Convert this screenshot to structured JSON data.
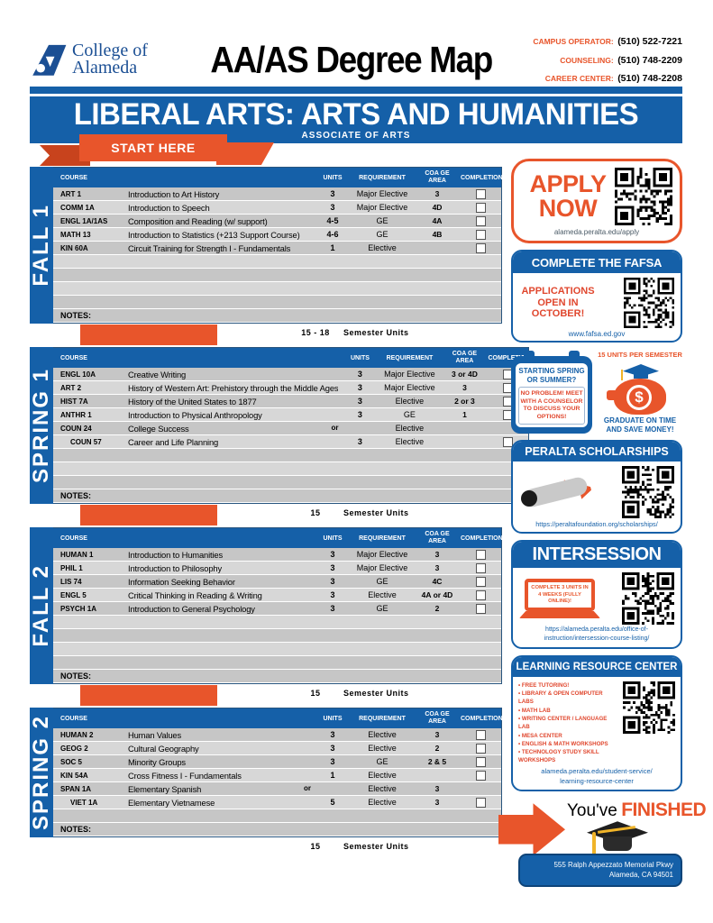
{
  "header": {
    "logo_line1": "College of",
    "logo_line2": "Alameda",
    "title": "AA/AS Degree Map",
    "contacts": [
      {
        "label": "CAMPUS OPERATOR:",
        "value": "(510) 522-7221"
      },
      {
        "label": "COUNSELING:",
        "value": "(510) 748-2209"
      },
      {
        "label": "CAREER CENTER:",
        "value": "(510) 748-2208"
      }
    ]
  },
  "banner": {
    "title": "LIBERAL ARTS: ARTS AND HUMANITIES",
    "subtitle": "ASSOCIATE OF ARTS",
    "start_here": "START HERE"
  },
  "columns": {
    "course": "COURSE",
    "units": "UNITS",
    "requirement": "REQUIREMENT",
    "area_line1": "COA GE",
    "area_line2": "AREA",
    "completion": "COMPLETION"
  },
  "notes_label": "NOTES:",
  "units_suffix": "Semester Units",
  "semesters": [
    {
      "label": "FALL 1",
      "total_units": "15 - 18",
      "empty_rows": 4,
      "courses": [
        {
          "code": "ART 1",
          "title": "Introduction to Art History",
          "units": "3",
          "requirement": "Major Elective",
          "area": "3",
          "or_text": "",
          "checkbox": true,
          "indent": false
        },
        {
          "code": "COMM 1A",
          "title": "Introduction to Speech",
          "units": "3",
          "requirement": "Major Elective",
          "area": "4D",
          "or_text": "",
          "checkbox": true,
          "indent": false
        },
        {
          "code": "ENGL 1A/1AS",
          "title": "Composition and Reading (w/ support)",
          "units": "4-5",
          "requirement": "GE",
          "area": "4A",
          "or_text": "",
          "checkbox": true,
          "indent": false
        },
        {
          "code": "MATH 13",
          "title": "Introduction to Statistics (+213 Support Course)",
          "units": "4-6",
          "requirement": "GE",
          "area": "4B",
          "or_text": "",
          "checkbox": true,
          "indent": false
        },
        {
          "code": "KIN 60A",
          "title": "Circuit Training for Strength I - Fundamentals",
          "units": "1",
          "requirement": "Elective",
          "area": "",
          "or_text": "",
          "checkbox": true,
          "indent": false
        }
      ]
    },
    {
      "label": "SPRING 1",
      "total_units": "15",
      "empty_rows": 3,
      "courses": [
        {
          "code": "ENGL 10A",
          "title": "Creative Writing",
          "units": "3",
          "requirement": "Major Elective",
          "area": "3 or 4D",
          "or_text": "",
          "checkbox": true,
          "indent": false
        },
        {
          "code": "ART 2",
          "title": "History of Western Art: Prehistory through the Middle Ages",
          "units": "3",
          "requirement": "Major Elective",
          "area": "3",
          "or_text": "",
          "checkbox": true,
          "indent": false
        },
        {
          "code": "HIST 7A",
          "title": "History of the United States to 1877",
          "units": "3",
          "requirement": "Elective",
          "area": "2 or 3",
          "or_text": "",
          "checkbox": true,
          "indent": false
        },
        {
          "code": "ANTHR 1",
          "title": "Introduction to Physical Anthropology",
          "units": "3",
          "requirement": "GE",
          "area": "1",
          "or_text": "",
          "checkbox": true,
          "indent": false
        },
        {
          "code": "COUN 24",
          "title": "College Success",
          "units": "",
          "requirement": "Elective",
          "area": "",
          "or_text": "or",
          "checkbox": false,
          "indent": false
        },
        {
          "code": "COUN 57",
          "title": "Career and Life Planning",
          "units": "3",
          "requirement": "Elective",
          "area": "",
          "or_text": "",
          "checkbox": true,
          "indent": true
        }
      ]
    },
    {
      "label": "FALL 2",
      "total_units": "15",
      "empty_rows": 4,
      "courses": [
        {
          "code": "HUMAN 1",
          "title": "Introduction to Humanities",
          "units": "3",
          "requirement": "Major Elective",
          "area": "3",
          "or_text": "",
          "checkbox": true,
          "indent": false
        },
        {
          "code": "PHIL 1",
          "title": "Introduction to Philosophy",
          "units": "3",
          "requirement": "Major Elective",
          "area": "3",
          "or_text": "",
          "checkbox": true,
          "indent": false
        },
        {
          "code": "LIS 74",
          "title": "Information Seeking Behavior",
          "units": "3",
          "requirement": "GE",
          "area": "4C",
          "or_text": "",
          "checkbox": true,
          "indent": false
        },
        {
          "code": "ENGL 5",
          "title": "Critical Thinking in Reading & Writing",
          "units": "3",
          "requirement": "Elective",
          "area": "4A or 4D",
          "or_text": "",
          "checkbox": true,
          "indent": false
        },
        {
          "code": "PSYCH 1A",
          "title": "Introduction to General Psychology",
          "units": "3",
          "requirement": "GE",
          "area": "2",
          "or_text": "",
          "checkbox": true,
          "indent": false
        }
      ]
    },
    {
      "label": "SPRING 2",
      "total_units": "15",
      "empty_rows": 1,
      "courses": [
        {
          "code": "HUMAN 2",
          "title": "Human Values",
          "units": "3",
          "requirement": "Elective",
          "area": "3",
          "or_text": "",
          "checkbox": true,
          "indent": false
        },
        {
          "code": "GEOG 2",
          "title": "Cultural Geography",
          "units": "3",
          "requirement": "Elective",
          "area": "2",
          "or_text": "",
          "checkbox": true,
          "indent": false
        },
        {
          "code": "SOC 5",
          "title": "Minority Groups",
          "units": "3",
          "requirement": "GE",
          "area": "2 & 5",
          "or_text": "",
          "checkbox": true,
          "indent": false
        },
        {
          "code": "KIN 54A",
          "title": "Cross Fitness I - Fundamentals",
          "units": "1",
          "requirement": "Elective",
          "area": "",
          "or_text": "",
          "checkbox": true,
          "indent": false
        },
        {
          "code": "SPAN 1A",
          "title": "Elementary Spanish",
          "units": "",
          "requirement": "Elective",
          "area": "3",
          "or_text": "or",
          "checkbox": false,
          "indent": false
        },
        {
          "code": "VIET 1A",
          "title": "Elementary Vietnamese",
          "units": "5",
          "requirement": "Elective",
          "area": "3",
          "or_text": "",
          "checkbox": true,
          "indent": true
        }
      ]
    }
  ],
  "cards": {
    "apply": {
      "title_line1": "APPLY",
      "title_line2": "NOW",
      "url": "alameda.peralta.edu/apply"
    },
    "fafsa": {
      "title": "COMPLETE THE FAFSA",
      "message": "APPLICATIONS OPEN IN OCTOBER!",
      "url": "www.fafsa.ed.gov"
    },
    "counseling": {
      "heading": "STARTING SPRING OR SUMMER?",
      "message": "NO PROBLEM! MEET WITH A COUNSELOR TO DISCUSS YOUR OPTIONS!",
      "units_note": "15 UNITS PER SEMESTER",
      "dollar_sign": "$",
      "savings_note": "GRADUATE ON TIME AND SAVE MONEY!"
    },
    "scholarships": {
      "title": "PERALTA SCHOLARSHIPS",
      "url": "https://peraltafoundation.org/scholarships/"
    },
    "intersession": {
      "title": "INTERSESSION",
      "message": "COMPLETE 3 UNITS IN 4 WEEKS (FULLY ONLINE)!",
      "url_line1": "https://alameda.peralta.edu/office-of-",
      "url_line2": "instruction/intersession-course-listing/"
    },
    "lrc": {
      "title": "LEARNING RESOURCE CENTER",
      "bullets": [
        "FREE TUTORING!",
        "LIBRARY & OPEN COMPUTER LABS",
        "MATH LAB",
        "WRITING CENTER / LANGUAGE LAB",
        "MESA CENTER",
        "ENGLISH & MATH WORKSHOPS",
        "TECHNOLOGY STUDY SKILL WORKSHOPS"
      ],
      "url_line1": "alameda.peralta.edu/student-service/",
      "url_line2": "learning-resource-center"
    },
    "finished": {
      "prefix": "You've",
      "highlight": "FINISHED",
      "address_line1": "555 Ralph Appezzato Memorial Pkwy",
      "address_line2": "Alameda, CA 94501"
    }
  },
  "colors": {
    "blue": "#1560a8",
    "orange": "#e8552b",
    "red": "#e0472e"
  }
}
